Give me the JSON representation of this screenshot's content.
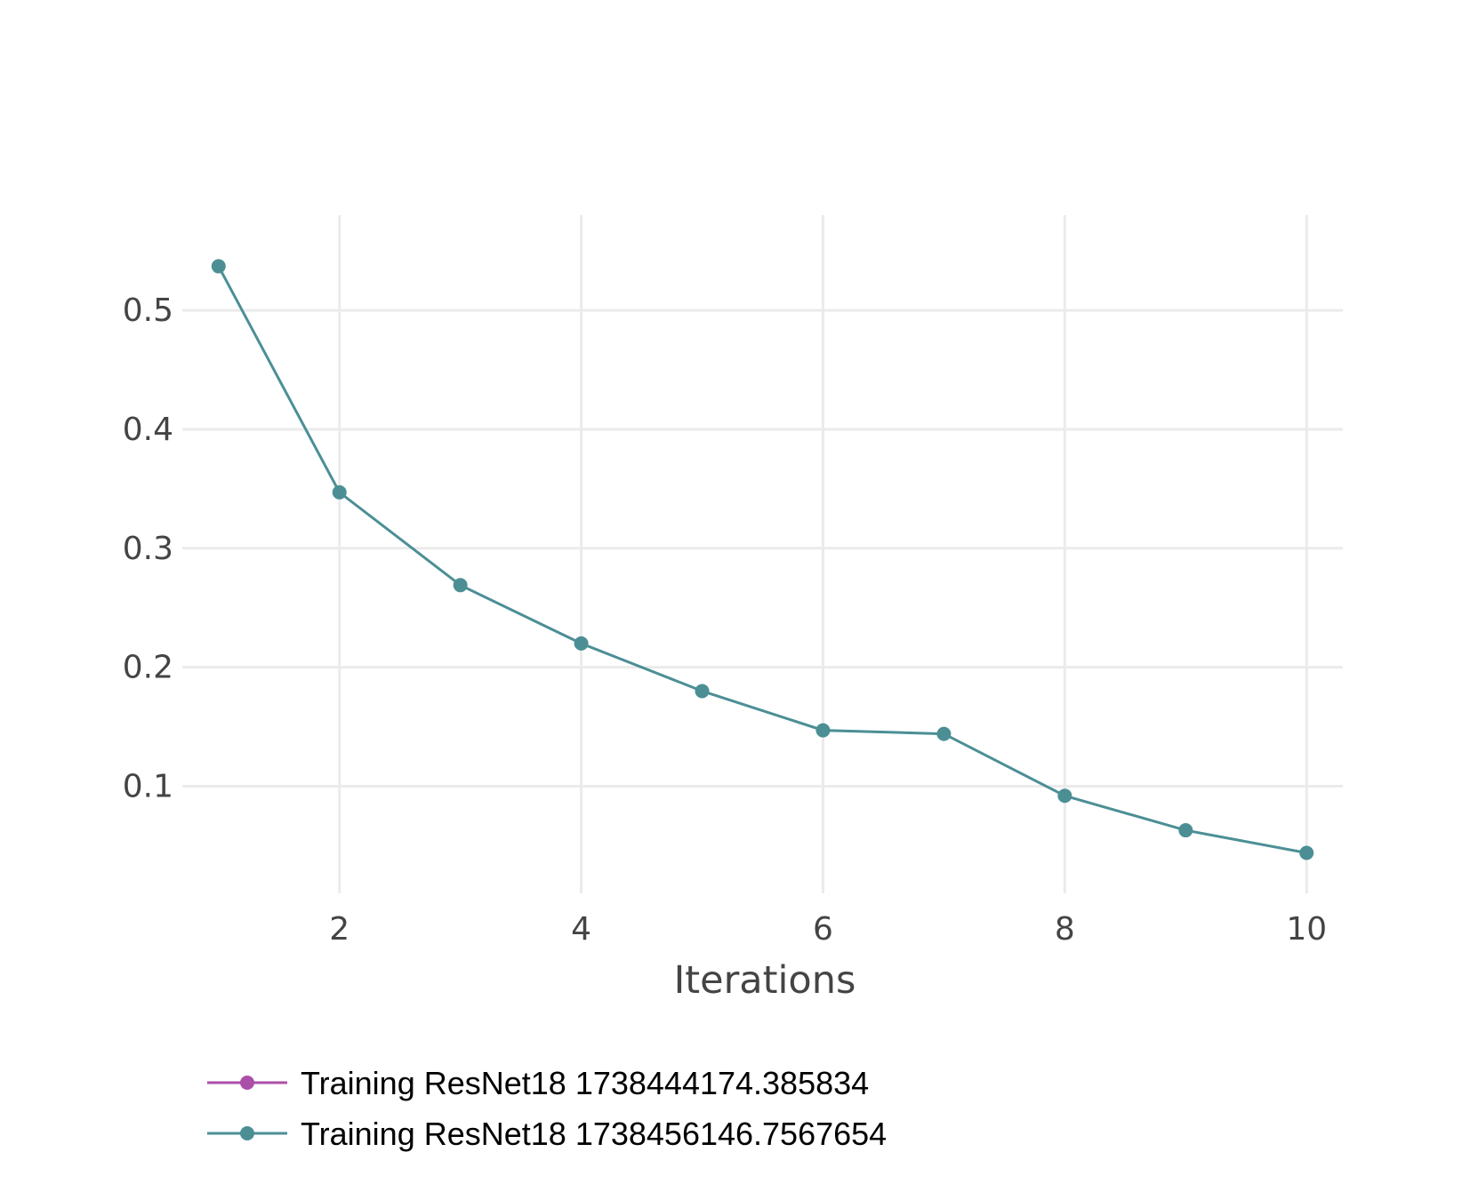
{
  "chart_data": {
    "type": "line",
    "title": "",
    "xlabel": "Iterations",
    "ylabel": "",
    "xlim": [
      0.7,
      10.3
    ],
    "ylim": [
      0.01,
      0.58
    ],
    "x_ticks": [
      2,
      4,
      6,
      8,
      10
    ],
    "y_ticks": [
      0.1,
      0.2,
      0.3,
      0.4,
      0.5
    ],
    "grid": true,
    "legend_position": "bottom-left",
    "series": [
      {
        "name": "Training ResNet18 1738444174.385834",
        "color": "#ab4fa8",
        "markers": true,
        "x": [],
        "y": []
      },
      {
        "name": "Training ResNet18 1738456146.7567654",
        "color": "#4b8f95",
        "markers": true,
        "x": [
          1,
          2,
          3,
          4,
          5,
          6,
          7,
          8,
          9,
          10
        ],
        "y": [
          0.537,
          0.347,
          0.269,
          0.22,
          0.18,
          0.147,
          0.144,
          0.092,
          0.063,
          0.044
        ]
      }
    ]
  }
}
